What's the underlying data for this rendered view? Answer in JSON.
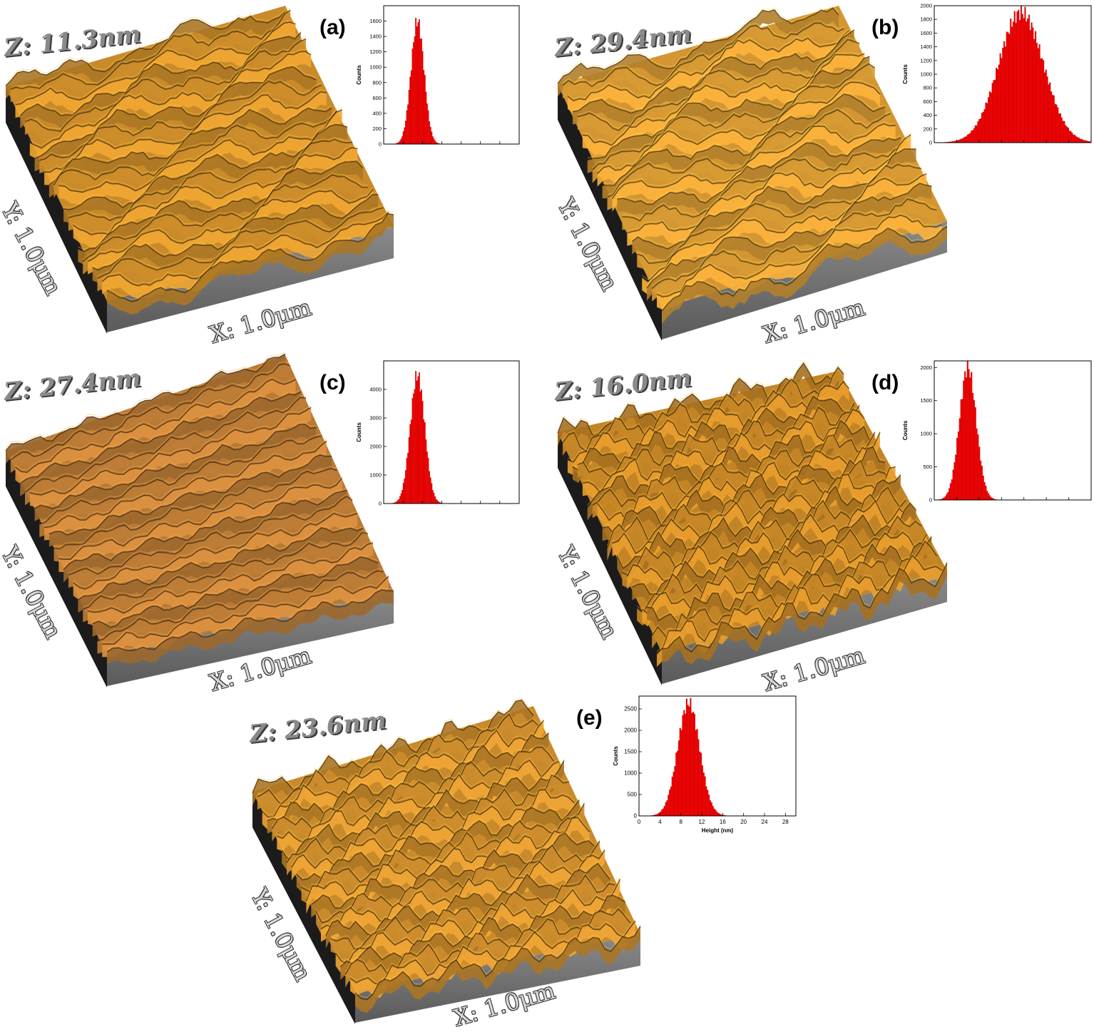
{
  "panels": [
    {
      "id": "a",
      "label": "(a)",
      "z_label": "Z: 11.3nm",
      "y_label": "Y: 1.0μm",
      "x_label": "X: 1.0μm",
      "surface_color": "#c98a2a"
    },
    {
      "id": "b",
      "label": "(b)",
      "z_label": "Z: 29.4nm",
      "y_label": "Y: 1.0μm",
      "x_label": "X: 1.0μm",
      "surface_color": "#d39632"
    },
    {
      "id": "c",
      "label": "(c)",
      "z_label": "Z: 27.4nm",
      "y_label": "Y: 1.0μm",
      "x_label": "X: 1.0μm",
      "surface_color": "#b97a35"
    },
    {
      "id": "d",
      "label": "(d)",
      "z_label": "Z: 16.0nm",
      "y_label": "Y: 1.0μm",
      "x_label": "X: 1.0μm",
      "surface_color": "#c38426"
    },
    {
      "id": "e",
      "label": "(e)",
      "z_label": "Z: 23.6nm",
      "y_label": "Y: 1.0μm",
      "x_label": "X: 1.0μm",
      "surface_color": "#c98a2c"
    }
  ],
  "chart_data": [
    {
      "panel": "a",
      "type": "bar",
      "ylabel": "Counts",
      "ylim": [
        0,
        1800
      ],
      "yticks": [
        0,
        200,
        400,
        600,
        800,
        1000,
        1200,
        1400,
        1600
      ],
      "xlim": [
        0,
        28
      ],
      "distribution": {
        "center": 7.0,
        "sigma": 1.35,
        "peak": 1600
      }
    },
    {
      "panel": "b",
      "type": "bar",
      "ylabel": "Counts",
      "ylim": [
        0,
        2000
      ],
      "yticks": [
        0,
        200,
        400,
        600,
        800,
        1000,
        1200,
        1400,
        1600,
        1800,
        2000
      ],
      "xlim": [
        0,
        28
      ],
      "distribution": {
        "center": 15.5,
        "sigma": 4.0,
        "peak": 1900
      }
    },
    {
      "panel": "c",
      "type": "bar",
      "ylabel": "Counts",
      "ylim": [
        0,
        5000
      ],
      "yticks": [
        0,
        1000,
        2000,
        3000,
        4000
      ],
      "xlim": [
        0,
        28
      ],
      "distribution": {
        "center": 7.0,
        "sigma": 1.5,
        "peak": 4500
      }
    },
    {
      "panel": "d",
      "type": "bar",
      "ylabel": "Counts",
      "ylim": [
        0,
        2100
      ],
      "yticks": [
        0,
        500,
        1000,
        1500,
        2000
      ],
      "xlim": [
        0,
        28
      ],
      "distribution": {
        "center": 6.0,
        "sigma": 1.5,
        "peak": 2000
      }
    },
    {
      "panel": "e",
      "type": "bar",
      "xlabel": "Height (nm)",
      "ylabel": "Counts",
      "ylim": [
        0,
        2800
      ],
      "yticks": [
        0,
        500,
        1000,
        1500,
        2000,
        2500
      ],
      "xticks": [
        0,
        4,
        8,
        12,
        16,
        20,
        24,
        28
      ],
      "xlim": [
        0,
        30
      ],
      "distribution": {
        "center": 9.5,
        "sigma": 2.1,
        "peak": 2640
      }
    }
  ]
}
